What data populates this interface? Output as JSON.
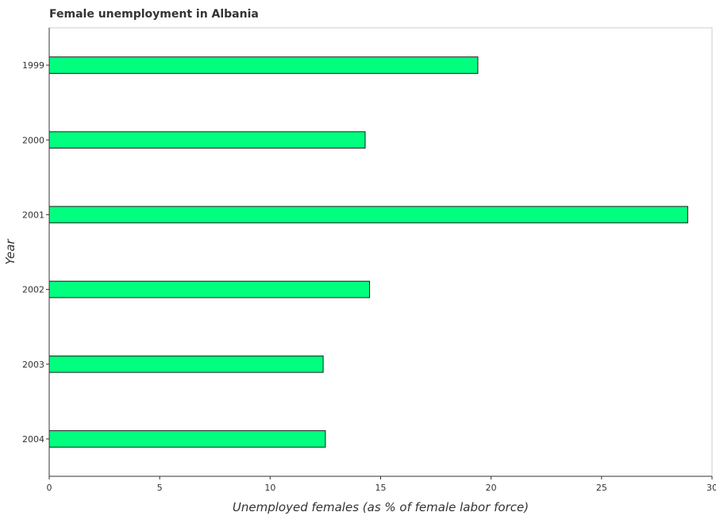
{
  "chart_data": {
    "type": "bar",
    "orientation": "horizontal",
    "title": "Female unemployment in Albania",
    "xlabel": "Unemployed females (as % of female labor force)",
    "ylabel": "Year",
    "categories": [
      "1999",
      "2000",
      "2001",
      "2002",
      "2003",
      "2004"
    ],
    "values": [
      19.4,
      14.3,
      28.9,
      14.5,
      12.4,
      12.5
    ],
    "xlim": [
      0,
      30
    ],
    "xticks": [
      0,
      5,
      10,
      15,
      20,
      25,
      30
    ],
    "grid": false,
    "colors": {
      "bar": "#00ff7f",
      "bar_edge": "#1a1a1a"
    }
  }
}
